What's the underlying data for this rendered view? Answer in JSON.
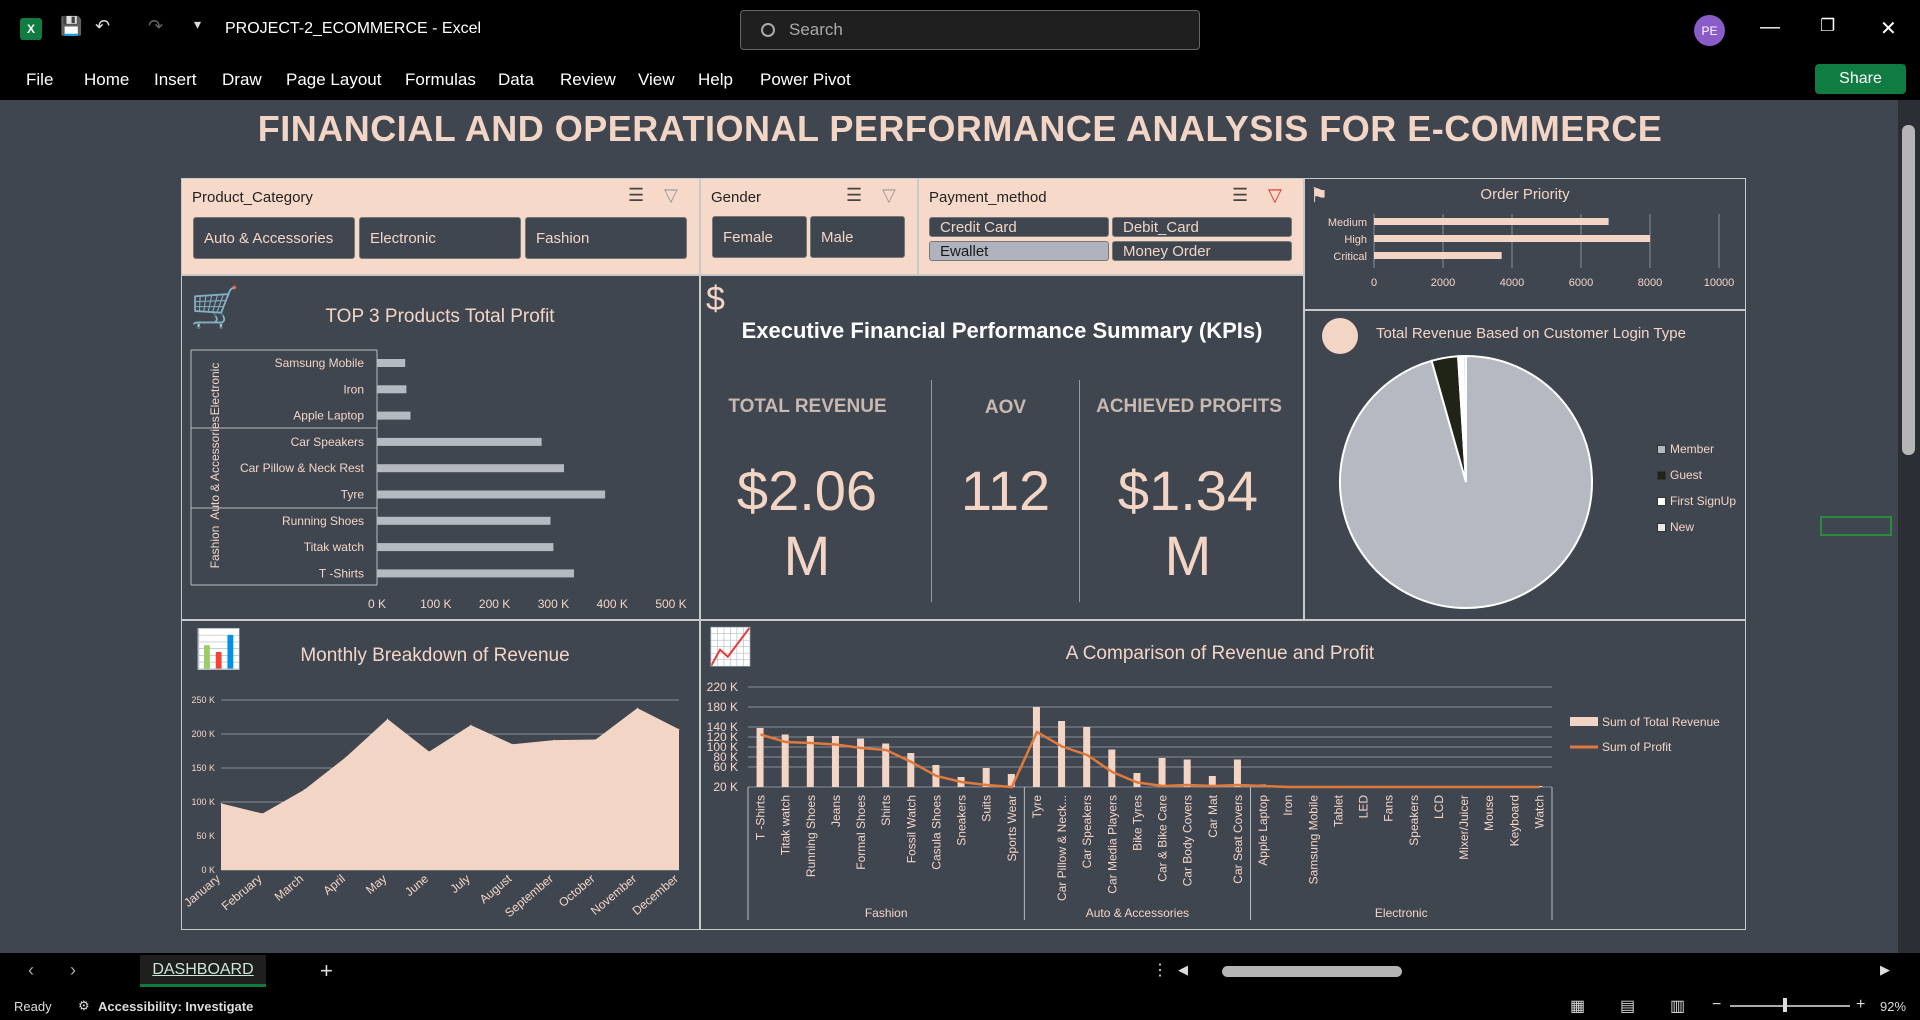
{
  "app": {
    "doc_title": "PROJECT-2_ECOMMERCE  -  Excel",
    "logo": "X",
    "avatar": "PE",
    "search_placeholder": "Search",
    "share_label": "Share"
  },
  "menu": [
    "File",
    "Home",
    "Insert",
    "Draw",
    "Page Layout",
    "Formulas",
    "Data",
    "Review",
    "View",
    "Help",
    "Power Pivot"
  ],
  "dashboard": {
    "title": "FINANCIAL AND OPERATIONAL PERFORMANCE ANALYSIS FOR E-COMMERCE"
  },
  "slicers": {
    "product_category": {
      "title": "Product_Category",
      "items": [
        "Auto & Accessories",
        "Electronic",
        "Fashion"
      ]
    },
    "gender": {
      "title": "Gender",
      "items": [
        "Female",
        "Male"
      ]
    },
    "payment_method": {
      "title": "Payment_method",
      "items": [
        "Credit Card",
        "Debit_Card",
        "Ewallet",
        "Money Order"
      ],
      "selected": "Ewallet"
    }
  },
  "order_priority": {
    "title": "Order Priority",
    "categories": [
      "Medium",
      "High",
      "Critical"
    ],
    "values": [
      6800,
      8000,
      3700
    ],
    "xticks": [
      "0",
      "2000",
      "4000",
      "6000",
      "8000",
      "10000"
    ],
    "xlim": [
      0,
      10000
    ]
  },
  "top3": {
    "title": "TOP 3 Products Total Profit",
    "groups": [
      "Electronic",
      "Auto & Accessories",
      "Fashion"
    ],
    "products": [
      "Samsung Mobile",
      "Iron",
      "Apple Laptop",
      "Car Speakers",
      "Car Pillow & Neck Rest",
      "Tyre",
      "Running Shoes",
      "Titak watch",
      "T -Shirts"
    ],
    "values": [
      48000,
      50000,
      57000,
      280000,
      318000,
      388000,
      295000,
      300000,
      335000
    ],
    "xticks": [
      "0 K",
      "100 K",
      "200 K",
      "300 K",
      "400 K",
      "500 K"
    ],
    "xlim": [
      0,
      500000
    ]
  },
  "kpi": {
    "title": "Executive Financial Performance Summary (KPIs)",
    "currency_icon": "$",
    "items": [
      {
        "label": "TOTAL REVENUE",
        "value": "$2.06 M"
      },
      {
        "label": "AOV",
        "value": "112"
      },
      {
        "label": "ACHIEVED PROFITS",
        "value": "$1.34 M"
      }
    ]
  },
  "login_pie": {
    "title": "Total Revenue Based on Customer Login Type",
    "legend": [
      "Member",
      "Guest",
      "First SignUp",
      "New"
    ],
    "values": [
      95.6,
      3.4,
      0.6,
      0.4
    ],
    "colors": [
      "#b5b9c1",
      "#1f2417",
      "#ffffff",
      "#e8e8e8"
    ]
  },
  "monthly": {
    "title": "Monthly Breakdown of Revenue",
    "months": [
      "January",
      "February",
      "March",
      "April",
      "May",
      "June",
      "July",
      "August",
      "September",
      "October",
      "November",
      "December"
    ],
    "values": [
      98000,
      83000,
      118000,
      166000,
      222000,
      174000,
      213000,
      185000,
      191000,
      192000,
      238000,
      207000
    ],
    "yticks": [
      "0 K",
      "50 K",
      "100 K",
      "150 K",
      "200 K",
      "250 K"
    ],
    "ylim": [
      0,
      250000
    ]
  },
  "comparison": {
    "title": "A Comparison of Revenue and Profit",
    "products": [
      "T -Shirts",
      "Titak watch",
      "Running Shoes",
      "Jeans",
      "Formal Shoes",
      "Shirts",
      "Fossil Watch",
      "Casula Shoes",
      "Sneakers",
      "Suits",
      "Sports Wear",
      "Tyre",
      "Car Pillow & Neck...",
      "Car Speakers",
      "Car Media Players",
      "Bike Tyres",
      "Car & Bike Care",
      "Car Body Covers",
      "Car Mat",
      "Car Seat Covers",
      "Apple Laptop",
      "Iron",
      "Samsung Mobile",
      "Tablet",
      "LED",
      "Fans",
      "Speakers",
      "LCD",
      "Mixer/Juicer",
      "Mouse",
      "Keyboard",
      "Watch"
    ],
    "revenue": [
      138000,
      125000,
      122000,
      122000,
      117000,
      107000,
      88000,
      64000,
      40000,
      58000,
      46000,
      180000,
      152000,
      140000,
      95000,
      48000,
      78000,
      75000,
      42000,
      75000,
      25000,
      21000,
      20000,
      20000,
      20000,
      20000,
      20000,
      20000,
      20000,
      20000,
      20000,
      20000
    ],
    "profit": [
      125000,
      110000,
      108000,
      105000,
      98000,
      94000,
      70000,
      42000,
      30000,
      24000,
      20000,
      130000,
      101000,
      84000,
      50000,
      29000,
      22000,
      24000,
      22000,
      24000,
      22000,
      20000,
      20000,
      20000,
      20000,
      20000,
      20000,
      20000,
      20000,
      20000,
      20000,
      20000
    ],
    "groups": [
      "Fashion",
      "Auto & Accessories",
      "Electronic"
    ],
    "yticks": [
      "20 K",
      "60 K",
      "80 K",
      "100 K",
      "120 K",
      "140 K",
      "180 K",
      "220 K"
    ],
    "legend": [
      "Sum of Total Revenue",
      "Sum of Profit"
    ]
  },
  "sheet_tab": "DASHBOARD",
  "status": {
    "ready": "Ready",
    "accessibility": "Accessibility: Investigate",
    "zoom": "92%"
  }
}
